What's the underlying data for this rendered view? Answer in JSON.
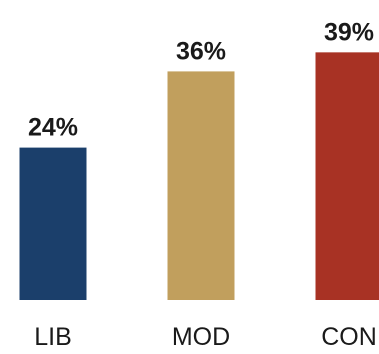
{
  "chart_data": {
    "type": "bar",
    "title": "",
    "xlabel": "",
    "ylabel": "",
    "categories": [
      "LIB",
      "MOD",
      "CON"
    ],
    "values": [
      24,
      36,
      39
    ],
    "value_labels": [
      "24%",
      "36%",
      "39%"
    ],
    "colors": [
      "#1b3f6b",
      "#c19f5d",
      "#a83224"
    ],
    "ylim": [
      0,
      40
    ],
    "grid": false,
    "legend": "none"
  }
}
